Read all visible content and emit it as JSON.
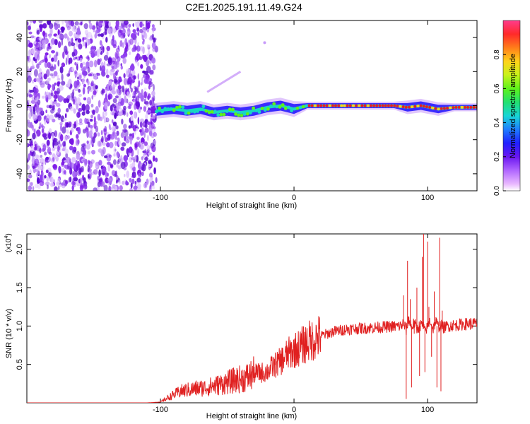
{
  "title": "C2E1.2025.191.11.49.G24",
  "chart_data": [
    {
      "type": "heatmap",
      "name": "spectrogram",
      "xlabel": "Height of straight line (km)",
      "ylabel": "Frequency (Hz)",
      "xlim": [
        -200,
        137
      ],
      "ylim": [
        -50,
        50
      ],
      "x_ticks": [
        {
          "value": -100,
          "label": "-100"
        },
        {
          "value": 0,
          "label": "0"
        },
        {
          "value": 100,
          "label": "100"
        }
      ],
      "y_ticks": [
        {
          "value": -40,
          "label": "-40"
        },
        {
          "value": -20,
          "label": "-20"
        },
        {
          "value": 0,
          "label": "0"
        },
        {
          "value": 20,
          "label": "20"
        },
        {
          "value": 40,
          "label": "40"
        }
      ],
      "noise_region_x": [
        -200,
        -103
      ],
      "signal_start_x": -103,
      "ridge": [
        {
          "x": -103,
          "y": -3
        },
        {
          "x": -90,
          "y": -2
        },
        {
          "x": -80,
          "y": -3
        },
        {
          "x": -70,
          "y": -2
        },
        {
          "x": -60,
          "y": -4
        },
        {
          "x": -50,
          "y": -3
        },
        {
          "x": -40,
          "y": -4
        },
        {
          "x": -30,
          "y": -3
        },
        {
          "x": -20,
          "y": -1
        },
        {
          "x": -10,
          "y": 0
        },
        {
          "x": 0,
          "y": -2
        },
        {
          "x": 10,
          "y": 0
        },
        {
          "x": 20,
          "y": 0
        },
        {
          "x": 40,
          "y": 0
        },
        {
          "x": 60,
          "y": 0
        },
        {
          "x": 75,
          "y": 0
        },
        {
          "x": 85,
          "y": -1
        },
        {
          "x": 95,
          "y": 0
        },
        {
          "x": 108,
          "y": -2
        },
        {
          "x": 120,
          "y": -1
        },
        {
          "x": 137,
          "y": -1
        }
      ],
      "colorbar": {
        "label": "Normalized spectral amplitude",
        "ticks": [
          {
            "value": 0.0,
            "label": "0.0"
          },
          {
            "value": 0.2,
            "label": "0.2"
          },
          {
            "value": 0.4,
            "label": "0.4"
          },
          {
            "value": 0.6,
            "label": "0.6"
          },
          {
            "value": 0.8,
            "label": "0.8"
          }
        ]
      },
      "colors": {
        "noise": "#7a14e6",
        "low": "#3a2bff",
        "mid": "#19d6c2",
        "high": "#e62020"
      }
    },
    {
      "type": "line",
      "name": "snr",
      "xlabel": "Height of straight line (km)",
      "ylabel": "SNR (10 * v/v)",
      "multiplier_prefix": "(x10",
      "multiplier_exp": "4",
      "multiplier_suffix": ")",
      "xlim": [
        -200,
        137
      ],
      "ylim": [
        0,
        22000
      ],
      "x_ticks": [
        {
          "value": -100,
          "label": "-100"
        },
        {
          "value": 0,
          "label": "0"
        },
        {
          "value": 100,
          "label": "100"
        }
      ],
      "y_ticks": [
        {
          "value": 5000,
          "label": "0.5"
        },
        {
          "value": 10000,
          "label": "1.0"
        },
        {
          "value": 15000,
          "label": "1.5"
        },
        {
          "value": 20000,
          "label": "2.0"
        }
      ],
      "color": "#e02020",
      "series": [
        {
          "x": [
            -200,
            -110,
            -100,
            -95,
            -85,
            -75,
            -65,
            -55,
            -45,
            -35,
            -30,
            -25,
            -20,
            -15,
            -10,
            -5,
            0,
            5,
            10,
            15,
            20,
            25,
            30,
            40,
            50,
            60,
            70,
            80,
            82,
            84,
            86,
            88,
            90,
            92,
            94,
            96,
            98,
            100,
            102,
            104,
            106,
            108,
            110,
            112,
            115,
            120,
            125,
            130,
            137
          ],
          "y": [
            0,
            0,
            100,
            600,
            1500,
            1800,
            2000,
            2400,
            2900,
            3300,
            3800,
            3900,
            4100,
            4800,
            5400,
            6300,
            6800,
            7300,
            7900,
            8300,
            8700,
            9000,
            9300,
            9600,
            9700,
            9800,
            9900,
            10000,
            10300,
            9500,
            11000,
            9800,
            10400,
            9600,
            10000,
            10200,
            9300,
            9900,
            10800,
            9600,
            10600,
            9900,
            10100,
            9800,
            10000,
            10100,
            10200,
            10300,
            10300
          ]
        }
      ],
      "spikes": [
        {
          "x": 82,
          "y": 14000
        },
        {
          "x": 84,
          "y": 500
        },
        {
          "x": 85,
          "y": 18500
        },
        {
          "x": 87,
          "y": 13500
        },
        {
          "x": 88,
          "y": 2000
        },
        {
          "x": 90,
          "y": 9000
        },
        {
          "x": 92,
          "y": 15000
        },
        {
          "x": 94,
          "y": 3500
        },
        {
          "x": 96,
          "y": 19000
        },
        {
          "x": 97,
          "y": 22000
        },
        {
          "x": 98,
          "y": 4000
        },
        {
          "x": 100,
          "y": 21000
        },
        {
          "x": 101,
          "y": 12500
        },
        {
          "x": 103,
          "y": 6000
        },
        {
          "x": 105,
          "y": 14500
        },
        {
          "x": 107,
          "y": 2000
        },
        {
          "x": 109,
          "y": 21500
        },
        {
          "x": 110,
          "y": 1500
        },
        {
          "x": 111,
          "y": 12000
        }
      ]
    }
  ]
}
